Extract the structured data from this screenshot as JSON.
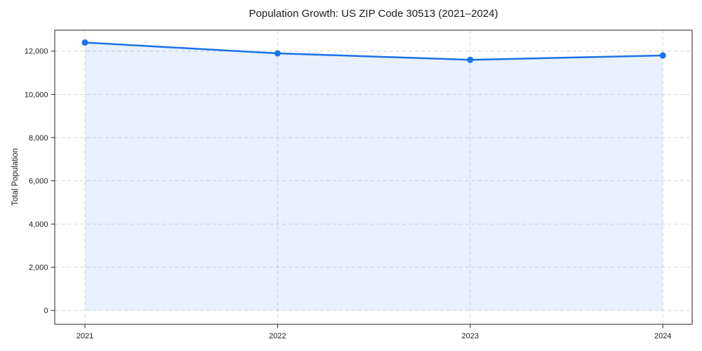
{
  "page": {
    "title": "Population Growth: US ZIP Code 30513 (2021–2024)"
  },
  "chart_data": {
    "type": "area",
    "title": "Population Growth: US ZIP Code 30513 (2021–2024)",
    "categories": [
      "2021",
      "2022",
      "2023",
      "2024"
    ],
    "series": [
      {
        "name": "Total Population",
        "values": [
          12400,
          11900,
          11600,
          11800
        ]
      }
    ],
    "xlabel": "",
    "ylabel": "Total Population",
    "ylim": [
      -650,
      12950
    ],
    "yticks": [
      0,
      2000,
      4000,
      6000,
      8000,
      10000,
      12000
    ],
    "grid": true,
    "grid_style": "dashed",
    "legend": false,
    "marker": "circle",
    "fill_to_zero": true,
    "colors": {
      "line": "#1a73e8",
      "marker": "#1a73e8",
      "fill": "rgba(26,115,232,0.10)",
      "grid": "#d4d4d4",
      "spine": "#262626",
      "text": "#1a1a1a"
    }
  }
}
